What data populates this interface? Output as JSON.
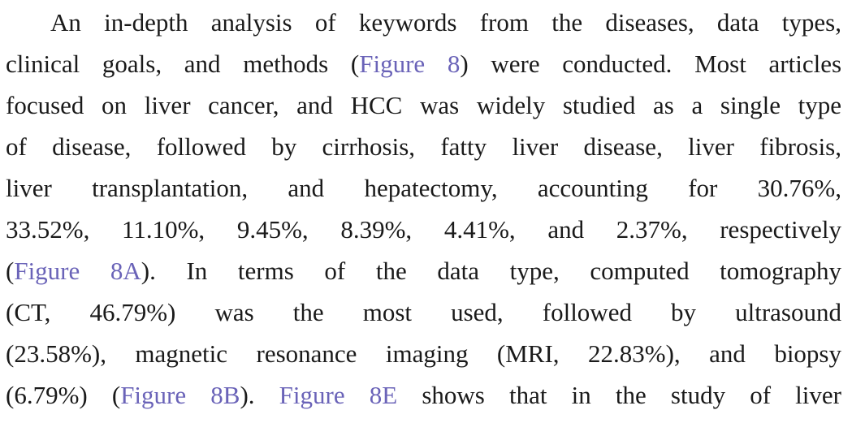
{
  "paragraph": {
    "lines": [
      [
        {
          "t": "An in-depth analysis of keywords from the diseases, data types,"
        }
      ],
      [
        {
          "t": "clinical goals, and methods ("
        },
        {
          "t": "Figure 8",
          "link": true
        },
        {
          "t": ") were conducted. Most articles"
        }
      ],
      [
        {
          "t": "focused on liver cancer, and HCC was widely studied as a single type"
        }
      ],
      [
        {
          "t": "of disease, followed by cirrhosis, fatty liver disease, liver fibrosis,"
        }
      ],
      [
        {
          "t": "liver transplantation, and hepatectomy, accounting for 30.76%,"
        }
      ],
      [
        {
          "t": "33.52%, 11.10%, 9.45%, 8.39%, 4.41%, and 2.37%, respectively"
        }
      ],
      [
        {
          "t": "("
        },
        {
          "t": "Figure 8A",
          "link": true
        },
        {
          "t": "). In terms of the data type, computed tomography"
        }
      ],
      [
        {
          "t": "(CT, 46.79%) was the most used, followed by ultrasound"
        }
      ],
      [
        {
          "t": "(23.58%), magnetic resonance imaging (MRI, 22.83%), and biopsy"
        }
      ],
      [
        {
          "t": "(6.79%) ("
        },
        {
          "t": "Figure 8B",
          "link": true
        },
        {
          "t": "). "
        },
        {
          "t": "Figure 8E",
          "link": true
        },
        {
          "t": " shows that in the study of liver"
        }
      ]
    ]
  },
  "colors": {
    "text": "#1a1a1a",
    "link": "#6a63b8",
    "background": "#ffffff"
  }
}
